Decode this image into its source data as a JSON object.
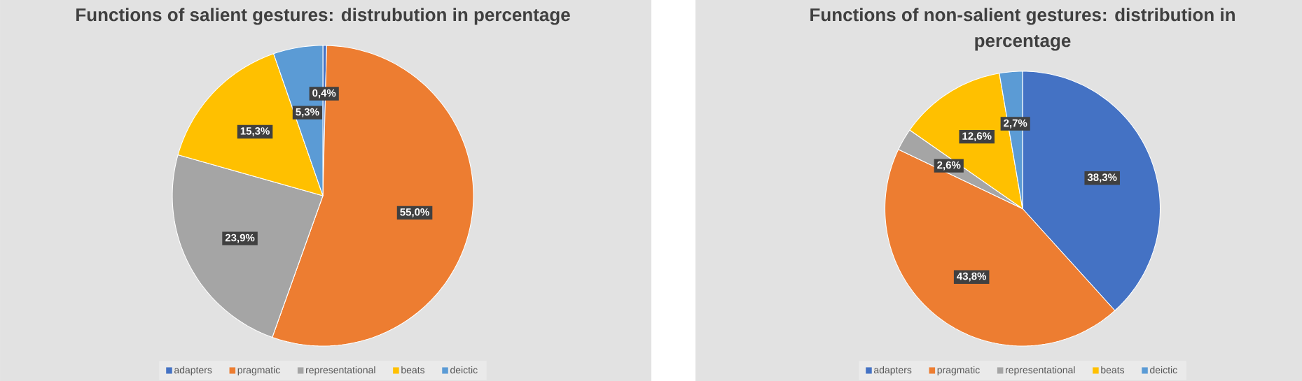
{
  "chart_data": [
    {
      "type": "pie",
      "title": "Functions of salient gestures: distrubution in percentage",
      "categories": [
        "adapters",
        "pragmatic",
        "representational",
        "beats",
        "deictic"
      ],
      "values": [
        0.4,
        55.0,
        23.9,
        15.3,
        5.3
      ],
      "colors": [
        "#4472c4",
        "#ed7d31",
        "#a5a5a5",
        "#ffc000",
        "#5b9bd5"
      ],
      "value_labels": [
        "0,4%",
        "55,0%",
        "23,9%",
        "15,3%",
        "5,3%"
      ],
      "legend": "bottom"
    },
    {
      "type": "pie",
      "title": "Functions of non-salient gestures: distribution in percentage",
      "categories": [
        "adapters",
        "pragmatic",
        "representational",
        "beats",
        "deictic"
      ],
      "values": [
        38.3,
        43.8,
        2.6,
        12.6,
        2.7
      ],
      "colors": [
        "#4472c4",
        "#ed7d31",
        "#a5a5a5",
        "#ffc000",
        "#5b9bd5"
      ],
      "value_labels": [
        "38,3%",
        "43,8%",
        "2,6%",
        "12,6%",
        "2,7%"
      ],
      "legend": "bottom"
    }
  ]
}
